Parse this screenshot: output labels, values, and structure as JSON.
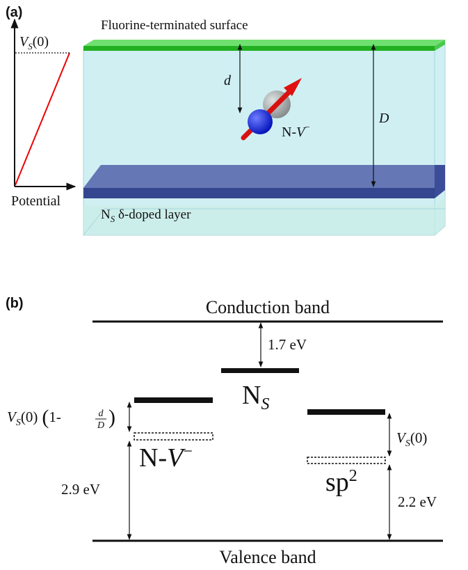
{
  "panel_a": {
    "label": "(a)",
    "surface_label": "Fluorine-terminated surface",
    "potential_axis_label": "Potential",
    "potential_max": {
      "main": "V",
      "sub": "S",
      "tail": "(0)"
    },
    "distance_small": "d",
    "distance_large": "D",
    "defect_label": {
      "main": "N-",
      "italic": "V",
      "sup": "−"
    },
    "layer_label": {
      "main": "N",
      "sub": "S",
      "tail": " δ-doped layer"
    }
  },
  "panel_b": {
    "label": "(b)",
    "conduction_band": "Conduction band",
    "valence_band": "Valence band",
    "gap_ns": "1.7 eV",
    "ns_label": {
      "main": "N",
      "sub": "S"
    },
    "shift_nv": {
      "main": "V",
      "sub": "S",
      "tail": "(0)",
      "paren_open": "(",
      "one_minus": "1-",
      "num": "d",
      "den": "D",
      "paren_close": ")"
    },
    "nv_label": {
      "main": "N-",
      "italic": "V",
      "sup": "−"
    },
    "gap_nv": "2.9 eV",
    "shift_sp2": {
      "main": "V",
      "sub": "S",
      "tail": "(0)"
    },
    "sp2_label": {
      "main": "sp",
      "sup": "2"
    },
    "gap_sp2": "2.2 eV"
  }
}
